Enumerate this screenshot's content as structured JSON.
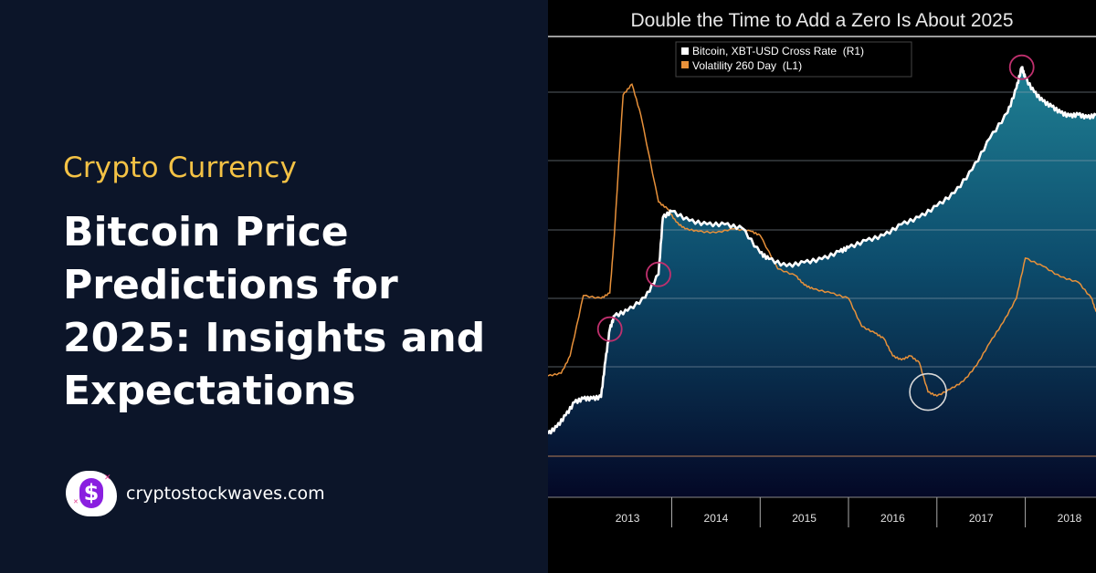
{
  "article": {
    "category": "Crypto Currency",
    "title": "Bitcoin Price Predictions for 2025: Insights and Expectations"
  },
  "brand": {
    "name": "cryptostockwaves.com",
    "logo_symbol": "$",
    "logo_icon": "dollar-icon"
  },
  "colors": {
    "background": "#0c1529",
    "accent": "#f4c245",
    "logo_purple": "#8a1fe0",
    "bitcoin_series": "#ffffff",
    "volatility_series": "#e8913a",
    "area_fill_top": "#1f7f93"
  },
  "chart_data": {
    "type": "line",
    "title": "Double the Time to Add a Zero Is About 2025",
    "x_tick_labels": [
      "2013",
      "2014",
      "2015",
      "2016",
      "2017",
      "2018"
    ],
    "x_range": [
      2012.6,
      2018.8
    ],
    "y_right_scale": "log",
    "grid": true,
    "legend": "top",
    "legend_entries": [
      "Bitcoin, XBT-USD Cross Rate  (R1)",
      "Volatility 260 Day  (L1)"
    ],
    "series": [
      {
        "name": "Bitcoin, XBT-USD Cross Rate  (R1)",
        "axis": "right",
        "x": [
          2012.6,
          2012.7,
          2012.8,
          2012.9,
          2013.0,
          2013.1,
          2013.2,
          2013.25,
          2013.3,
          2013.35,
          2013.5,
          2013.7,
          2013.85,
          2013.9,
          2014.0,
          2014.2,
          2014.4,
          2014.6,
          2014.8,
          2015.0,
          2015.1,
          2015.3,
          2015.5,
          2015.7,
          2015.9,
          2016.0,
          2016.2,
          2016.4,
          2016.6,
          2016.8,
          2017.0,
          2017.2,
          2017.4,
          2017.6,
          2017.8,
          2017.9,
          2017.96,
          2018.0,
          2018.1,
          2018.2,
          2018.3,
          2018.4,
          2018.5,
          2018.6,
          2018.7,
          2018.8
        ],
        "values": [
          6,
          7,
          9,
          12,
          13,
          13,
          13.5,
          30,
          60,
          80,
          90,
          120,
          200,
          700,
          800,
          650,
          600,
          600,
          550,
          320,
          280,
          240,
          260,
          280,
          330,
          360,
          420,
          470,
          600,
          700,
          900,
          1200,
          2000,
          4000,
          7000,
          12000,
          19000,
          15000,
          11000,
          9000,
          8000,
          7000,
          6500,
          6700,
          6300,
          6600
        ]
      },
      {
        "name": "Volatility 260 Day  (L1)",
        "axis": "left",
        "x": [
          2012.6,
          2012.75,
          2012.85,
          2013.0,
          2013.2,
          2013.3,
          2013.35,
          2013.45,
          2013.55,
          2013.65,
          2013.85,
          2013.95,
          2014.05,
          2014.15,
          2014.3,
          2014.5,
          2014.7,
          2014.9,
          2015.0,
          2015.2,
          2015.4,
          2015.5,
          2015.6,
          2015.8,
          2016.0,
          2016.15,
          2016.3,
          2016.4,
          2016.5,
          2016.6,
          2016.7,
          2016.8,
          2016.9,
          2017.0,
          2017.15,
          2017.3,
          2017.45,
          2017.6,
          2017.75,
          2017.9,
          2018.0,
          2018.2,
          2018.4,
          2018.6,
          2018.75,
          2018.8
        ],
        "values": [
          60,
          62,
          75,
          120,
          118,
          122,
          165,
          270,
          278,
          255,
          190,
          185,
          175,
          170,
          168,
          167,
          170,
          168,
          165,
          140,
          135,
          128,
          125,
          122,
          118,
          97,
          92,
          88,
          75,
          72,
          75,
          70,
          48,
          45,
          50,
          56,
          68,
          85,
          100,
          118,
          148,
          142,
          134,
          130,
          118,
          108
        ]
      }
    ]
  }
}
